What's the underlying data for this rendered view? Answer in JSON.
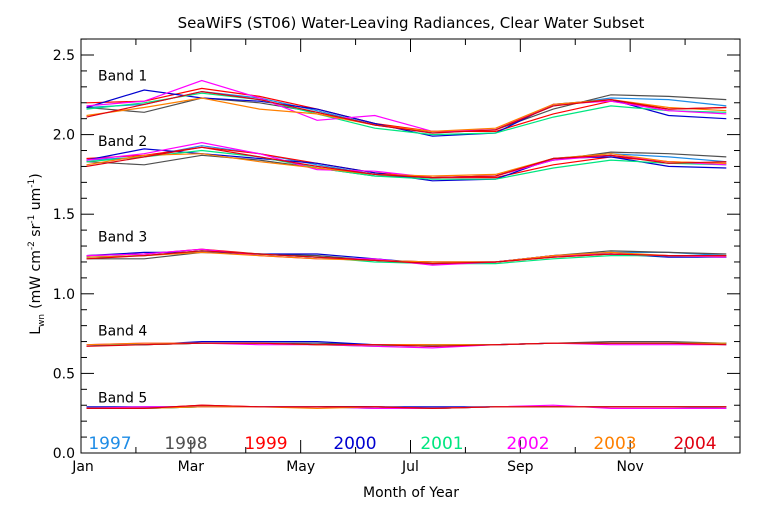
{
  "chart_data": {
    "type": "line",
    "title": "SeaWiFS (ST06) Water-Leaving Radiances, Clear Water Subset",
    "xlabel": "Month of Year",
    "ylabel": {
      "main": "L",
      "sub": "wn",
      "units": "(mW cm",
      "u1": "-2",
      "u2": " sr",
      "u3": "-1",
      "u4": " um",
      "u5": "-1",
      "close": ")"
    },
    "xlim": [
      0,
      12
    ],
    "ylim": [
      0,
      2.6
    ],
    "x_ticks": [
      {
        "v": 0,
        "label": "Jan"
      },
      {
        "v": 2,
        "label": "Mar"
      },
      {
        "v": 4,
        "label": "May"
      },
      {
        "v": 6,
        "label": "Jul"
      },
      {
        "v": 8,
        "label": "Sep"
      },
      {
        "v": 10,
        "label": "Nov"
      }
    ],
    "x_minor_step": 1,
    "y_ticks": [
      {
        "v": 0.0,
        "label": "0.0"
      },
      {
        "v": 0.5,
        "label": "0.5"
      },
      {
        "v": 1.0,
        "label": "1.0"
      },
      {
        "v": 1.5,
        "label": "1.5"
      },
      {
        "v": 2.0,
        "label": "2.0"
      },
      {
        "v": 2.5,
        "label": "2.5"
      }
    ],
    "y_minor_step": 0.1,
    "grid": false,
    "band_labels": [
      {
        "label": "Band 1",
        "x": 0.3,
        "y": 2.37
      },
      {
        "label": "Band 2",
        "x": 0.3,
        "y": 1.96
      },
      {
        "label": "Band 3",
        "x": 0.3,
        "y": 1.36
      },
      {
        "label": "Band 4",
        "x": 0.3,
        "y": 0.77
      },
      {
        "label": "Band 5",
        "x": 0.3,
        "y": 0.35
      }
    ],
    "legend_position": "bottom-inside",
    "x": [
      0.1,
      1.15,
      2.2,
      3.25,
      4.3,
      5.35,
      6.4,
      7.55,
      8.6,
      9.65,
      10.7,
      11.75
    ],
    "series": [
      {
        "name": "1997",
        "color": "#1e8ce6",
        "bands": [
          [
            2.17,
            2.19,
            2.27,
            2.23,
            2.15,
            2.06,
            2.01,
            2.03,
            2.18,
            2.23,
            2.22,
            2.18
          ],
          [
            1.84,
            1.86,
            1.93,
            1.88,
            1.81,
            1.75,
            1.73,
            1.74,
            1.85,
            1.88,
            1.86,
            1.83
          ],
          [
            1.23,
            1.24,
            1.27,
            1.25,
            1.23,
            1.21,
            1.19,
            1.2,
            1.24,
            1.26,
            1.26,
            1.24
          ],
          [
            0.68,
            0.68,
            0.69,
            0.69,
            0.68,
            0.68,
            0.67,
            0.68,
            0.69,
            0.69,
            0.69,
            0.68
          ],
          [
            0.28,
            0.28,
            0.29,
            0.29,
            0.29,
            0.29,
            0.28,
            0.29,
            0.29,
            0.29,
            0.29,
            0.28
          ]
        ]
      },
      {
        "name": "1998",
        "color": "#505050",
        "bands": [
          [
            2.17,
            2.14,
            2.23,
            2.2,
            2.14,
            2.06,
            2.02,
            2.03,
            2.16,
            2.25,
            2.24,
            2.22
          ],
          [
            1.83,
            1.81,
            1.87,
            1.84,
            1.79,
            1.74,
            1.73,
            1.74,
            1.84,
            1.89,
            1.88,
            1.86
          ],
          [
            1.22,
            1.22,
            1.26,
            1.25,
            1.24,
            1.21,
            1.2,
            1.2,
            1.24,
            1.27,
            1.26,
            1.25
          ],
          [
            0.68,
            0.68,
            0.69,
            0.69,
            0.69,
            0.68,
            0.68,
            0.68,
            0.69,
            0.7,
            0.7,
            0.69
          ],
          [
            0.28,
            0.28,
            0.29,
            0.29,
            0.29,
            0.29,
            0.28,
            0.29,
            0.29,
            0.29,
            0.29,
            0.29
          ]
        ]
      },
      {
        "name": "1999",
        "color": "#ff0000",
        "bands": [
          [
            2.2,
            2.21,
            2.29,
            2.24,
            2.16,
            2.07,
            2.02,
            2.02,
            2.13,
            2.21,
            2.16,
            2.17
          ],
          [
            1.85,
            1.87,
            1.92,
            1.88,
            1.82,
            1.76,
            1.73,
            1.73,
            1.81,
            1.86,
            1.83,
            1.82
          ],
          [
            1.24,
            1.25,
            1.28,
            1.25,
            1.23,
            1.21,
            1.2,
            1.2,
            1.23,
            1.25,
            1.24,
            1.24
          ],
          [
            0.68,
            0.68,
            0.69,
            0.69,
            0.68,
            0.68,
            0.68,
            0.68,
            0.69,
            0.69,
            0.69,
            0.69
          ],
          [
            0.28,
            0.28,
            0.3,
            0.29,
            0.29,
            0.29,
            0.28,
            0.29,
            0.29,
            0.29,
            0.29,
            0.29
          ]
        ]
      },
      {
        "name": "2000",
        "color": "#0000d0",
        "bands": [
          [
            2.17,
            2.28,
            2.23,
            2.21,
            2.16,
            2.07,
            1.99,
            2.01,
            2.19,
            2.22,
            2.12,
            2.1
          ],
          [
            1.84,
            1.91,
            1.88,
            1.85,
            1.82,
            1.76,
            1.71,
            1.72,
            1.85,
            1.86,
            1.8,
            1.79
          ],
          [
            1.24,
            1.26,
            1.26,
            1.25,
            1.25,
            1.22,
            1.19,
            1.2,
            1.24,
            1.25,
            1.23,
            1.23
          ],
          [
            0.68,
            0.68,
            0.7,
            0.7,
            0.7,
            0.68,
            0.67,
            0.68,
            0.69,
            0.69,
            0.69,
            0.69
          ],
          [
            0.29,
            0.29,
            0.29,
            0.29,
            0.29,
            0.29,
            0.29,
            0.29,
            0.29,
            0.29,
            0.29,
            0.29
          ]
        ]
      },
      {
        "name": "2001",
        "color": "#00e680",
        "bands": [
          [
            2.16,
            2.2,
            2.26,
            2.22,
            2.13,
            2.04,
            2.0,
            2.01,
            2.11,
            2.18,
            2.15,
            2.14
          ],
          [
            1.83,
            1.86,
            1.9,
            1.86,
            1.79,
            1.74,
            1.72,
            1.72,
            1.79,
            1.84,
            1.82,
            1.81
          ],
          [
            1.23,
            1.24,
            1.27,
            1.25,
            1.23,
            1.2,
            1.19,
            1.19,
            1.22,
            1.24,
            1.24,
            1.23
          ],
          [
            0.68,
            0.68,
            0.69,
            0.69,
            0.68,
            0.67,
            0.68,
            0.68,
            0.69,
            0.69,
            0.69,
            0.69
          ],
          [
            0.28,
            0.28,
            0.29,
            0.29,
            0.29,
            0.28,
            0.28,
            0.29,
            0.29,
            0.29,
            0.29,
            0.29
          ]
        ]
      },
      {
        "name": "2002",
        "color": "#ff00ff",
        "bands": [
          [
            2.18,
            2.21,
            2.34,
            2.23,
            2.09,
            2.12,
            2.02,
            2.03,
            2.19,
            2.21,
            2.15,
            2.13
          ],
          [
            1.84,
            1.88,
            1.95,
            1.88,
            1.78,
            1.77,
            1.73,
            1.74,
            1.84,
            1.87,
            1.83,
            1.81
          ],
          [
            1.24,
            1.25,
            1.28,
            1.24,
            1.22,
            1.22,
            1.18,
            1.2,
            1.24,
            1.25,
            1.24,
            1.23
          ],
          [
            0.68,
            0.69,
            0.69,
            0.68,
            0.68,
            0.67,
            0.66,
            0.68,
            0.69,
            0.68,
            0.68,
            0.68
          ],
          [
            0.28,
            0.29,
            0.29,
            0.29,
            0.29,
            0.28,
            0.28,
            0.29,
            0.3,
            0.28,
            0.28,
            0.28
          ]
        ]
      },
      {
        "name": "2003",
        "color": "#ff8000",
        "bands": [
          [
            2.12,
            2.17,
            2.23,
            2.16,
            2.13,
            2.06,
            2.02,
            2.04,
            2.19,
            2.22,
            2.17,
            2.15
          ],
          [
            1.81,
            1.87,
            1.88,
            1.83,
            1.79,
            1.75,
            1.74,
            1.75,
            1.85,
            1.88,
            1.83,
            1.82
          ],
          [
            1.23,
            1.24,
            1.26,
            1.24,
            1.22,
            1.21,
            1.2,
            1.2,
            1.24,
            1.26,
            1.24,
            1.24
          ],
          [
            0.68,
            0.69,
            0.69,
            0.69,
            0.68,
            0.68,
            0.68,
            0.68,
            0.69,
            0.69,
            0.69,
            0.69
          ],
          [
            0.28,
            0.28,
            0.29,
            0.29,
            0.28,
            0.29,
            0.28,
            0.29,
            0.29,
            0.29,
            0.29,
            0.29
          ]
        ]
      },
      {
        "name": "2004",
        "color": "#e00010",
        "bands": [
          [
            2.11,
            2.19,
            2.27,
            2.22,
            2.14,
            2.06,
            2.01,
            2.03,
            2.18,
            2.22,
            2.16,
            2.17
          ],
          [
            1.8,
            1.86,
            1.92,
            1.86,
            1.8,
            1.75,
            1.73,
            1.74,
            1.85,
            1.87,
            1.82,
            1.83
          ],
          [
            1.22,
            1.24,
            1.27,
            1.25,
            1.23,
            1.21,
            1.19,
            1.2,
            1.23,
            1.25,
            1.24,
            1.24
          ],
          [
            0.67,
            0.68,
            0.69,
            0.69,
            0.68,
            0.68,
            0.67,
            0.68,
            0.69,
            0.69,
            0.69,
            0.68
          ],
          [
            0.28,
            0.28,
            0.3,
            0.29,
            0.29,
            0.29,
            0.28,
            0.29,
            0.29,
            0.29,
            0.29,
            0.29
          ]
        ]
      }
    ]
  }
}
